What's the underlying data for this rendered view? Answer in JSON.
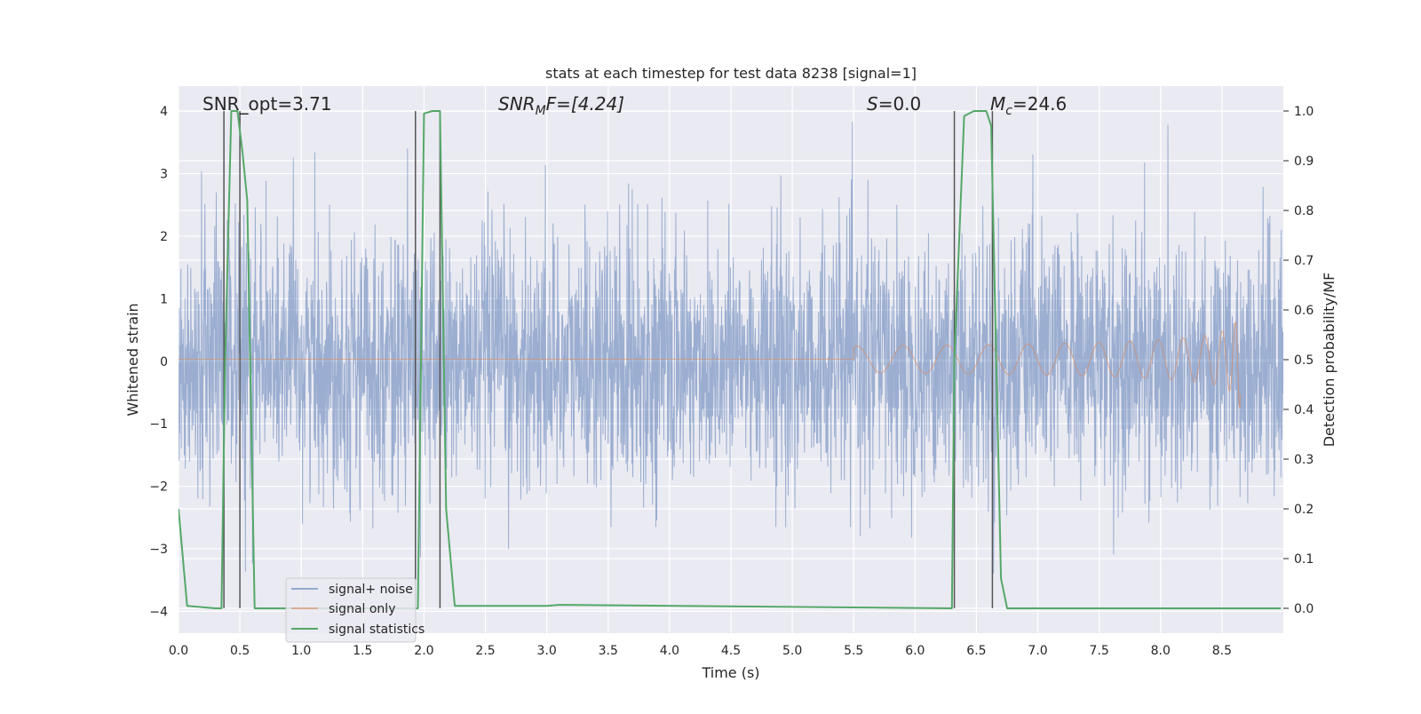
{
  "chart_data": {
    "type": "line",
    "title": "stats at each timestep for test data 8238 [signal=1]",
    "xlabel": "Time (s)",
    "ylabel_left": "Whitened strain",
    "ylabel_right": "Detection probability/MF",
    "xlim": [
      0.0,
      9.0
    ],
    "ylim_left": [
      -4.35,
      4.4
    ],
    "ylim_right": [
      -0.05,
      1.05
    ],
    "x_ticks": [
      "0.0",
      "0.5",
      "1.0",
      "1.5",
      "2.0",
      "2.5",
      "3.0",
      "3.5",
      "4.0",
      "4.5",
      "5.0",
      "5.5",
      "6.0",
      "6.5",
      "7.0",
      "7.5",
      "8.0",
      "8.5"
    ],
    "y_ticks_left": [
      "4",
      "3",
      "2",
      "1",
      "0",
      "−1",
      "−2",
      "−3",
      "−4"
    ],
    "y_ticks_right": [
      "1.0",
      "0.9",
      "0.8",
      "0.7",
      "0.6",
      "0.5",
      "0.4",
      "0.3",
      "0.2",
      "0.1",
      "0.0"
    ],
    "grid": true,
    "legend_position": "lower-left",
    "colors": {
      "background": "#eaeaf2",
      "grid": "#ffffff",
      "signal_noise": "#4c72b0",
      "signal_only": "#dd8452",
      "signal_statistics": "#55a868",
      "vline": "#555555"
    },
    "annotations": {
      "snr_opt": "SNR_opt=3.71",
      "snr_mf_base": "SNR",
      "snr_mf_sub": "M",
      "snr_mf_tail": "F=[4.24]",
      "s_value_var": "S",
      "s_value_tail": "=0.0",
      "mc_var": "M",
      "mc_sub": "c",
      "mc_tail": "=24.6"
    },
    "series": [
      {
        "name": "signal+ noise",
        "axis": "left",
        "style": "dense noise, approx. std 1.0, range about −3.6 to 4.0"
      },
      {
        "name": "signal only",
        "axis": "left",
        "style": "chirp starting near 6.0 s, amplitude growing to about 0.75 at 8.65 s"
      },
      {
        "name": "signal statistics",
        "axis": "right",
        "x": [
          0.0,
          0.07,
          0.3,
          0.35,
          0.38,
          0.43,
          0.48,
          0.52,
          0.56,
          0.62,
          1.85,
          1.95,
          2.0,
          2.07,
          2.13,
          2.18,
          2.25,
          3.0,
          3.1,
          6.3,
          6.32,
          6.4,
          6.48,
          6.58,
          6.62,
          6.7,
          6.75,
          8.98
        ],
        "values": [
          0.2,
          0.005,
          0.0,
          0.0,
          0.5,
          1.0,
          1.0,
          0.92,
          0.82,
          0.0,
          0.0,
          0.0,
          0.995,
          1.0,
          1.0,
          0.2,
          0.005,
          0.005,
          0.007,
          0.0,
          0.5,
          0.99,
          1.0,
          1.0,
          0.97,
          0.06,
          0.0,
          0.0
        ]
      }
    ],
    "vlines_x": [
      0.37,
      0.5,
      1.93,
      2.13,
      6.32,
      6.63
    ]
  }
}
